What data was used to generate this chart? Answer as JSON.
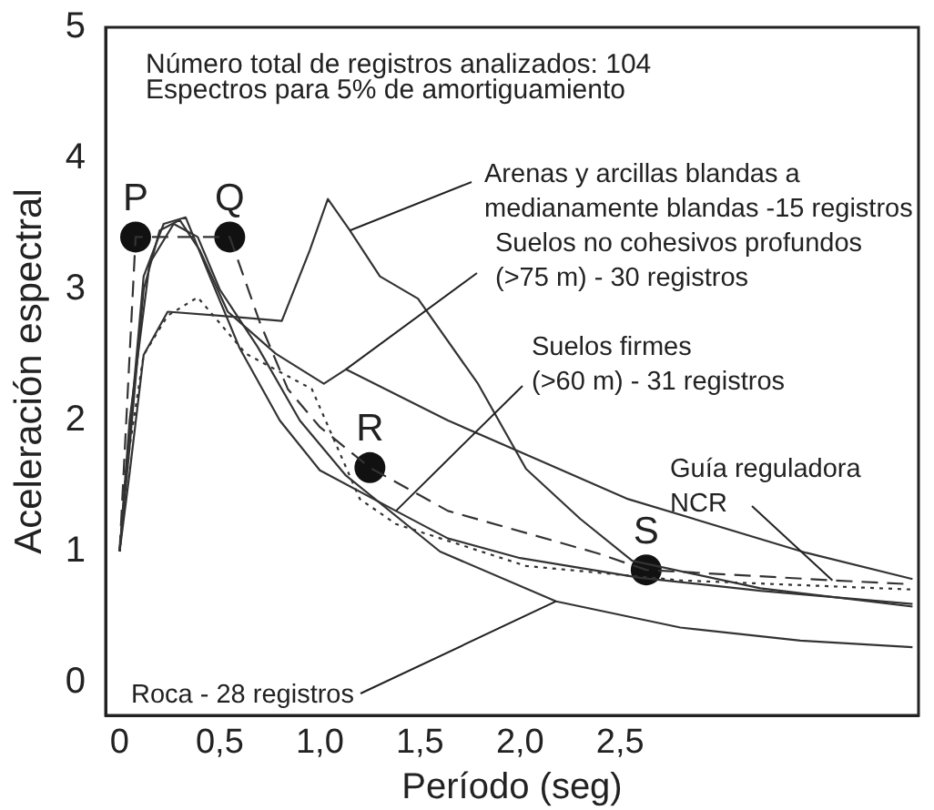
{
  "chart_data": {
    "type": "line",
    "xlabel": "Período (seg)",
    "ylabel": "Aceleración espectral",
    "xlim": [
      -0.07,
      3.99
    ],
    "ylim": [
      -0.25,
      5.0
    ],
    "xticks": [
      {
        "value": 0,
        "label": "0"
      },
      {
        "value": 0.5,
        "label": "0,5"
      },
      {
        "value": 1.0,
        "label": "1,0"
      },
      {
        "value": 1.5,
        "label": "1,5"
      },
      {
        "value": 2.0,
        "label": "2,0"
      },
      {
        "value": 2.5,
        "label": "2,5"
      }
    ],
    "yticks": [
      0,
      1,
      2,
      3,
      4,
      5
    ],
    "grid": false,
    "marker": "none",
    "annotations": [
      "Número total de registros analizados: 104",
      "Espectros para 5% de amortiguamiento",
      {
        "text": "P",
        "x": 0.08,
        "y": 3.4
      },
      {
        "text": "Q",
        "x": 0.55,
        "y": 3.4
      },
      {
        "text": "R",
        "x": 1.25,
        "y": 1.64
      },
      {
        "text": "S",
        "x": 2.63,
        "y": 0.86
      },
      {
        "text": "Arenas y arcillas blandas a medianamente blandas -15 registros",
        "x": 1.15,
        "y": 3.45
      },
      {
        "text": "Suelos no cohesivos profundos (>75 m) - 30 registros",
        "x": 1.13,
        "y": 2.39
      },
      {
        "text": "Suelos firmes (>60 m) - 31 registros",
        "x": 1.38,
        "y": 1.31
      },
      {
        "text": "Roca - 28 registros",
        "x": 2.18,
        "y": 0.62
      },
      {
        "text": "Guía reguladora NCR",
        "x": 3.56,
        "y": 0.78
      }
    ],
    "series": [
      {
        "color": "#333333",
        "line_style": "solid",
        "x": [
          0,
          0.05,
          0.12,
          0.24,
          0.5,
          0.81,
          0.95,
          1.04,
          1.15,
          1.3,
          1.49,
          1.79,
          2.03,
          2.3,
          2.56,
          3.2,
          3.96
        ],
        "values": [
          1.0,
          1.6,
          2.5,
          2.83,
          2.8,
          2.76,
          3.3,
          3.69,
          3.45,
          3.1,
          2.93,
          2.28,
          1.63,
          1.25,
          0.93,
          0.72,
          0.58
        ]
      },
      {
        "color": "#333333",
        "line_style": "solid",
        "x": [
          0,
          0.05,
          0.12,
          0.2,
          0.3,
          0.4,
          0.54,
          0.78,
          1.02,
          1.13,
          1.64,
          2.54,
          3.43,
          3.96
        ],
        "values": [
          1.0,
          1.8,
          3.0,
          3.45,
          3.53,
          3.3,
          2.83,
          2.51,
          2.28,
          2.39,
          2.0,
          1.4,
          0.99,
          0.79
        ]
      },
      {
        "color": "#333333",
        "line_style": "solid",
        "x": [
          0,
          0.05,
          0.12,
          0.22,
          0.33,
          0.45,
          0.6,
          0.8,
          1.0,
          1.38,
          1.64,
          2.0,
          2.6,
          3.2,
          3.96
        ],
        "values": [
          1.0,
          1.9,
          3.1,
          3.5,
          3.55,
          3.1,
          2.55,
          2.0,
          1.62,
          1.31,
          1.1,
          0.95,
          0.8,
          0.7,
          0.6
        ]
      },
      {
        "color": "#333333",
        "line_style": "solid",
        "x": [
          0,
          0.05,
          0.15,
          0.27,
          0.39,
          0.5,
          0.69,
          0.9,
          1.13,
          1.6,
          2.18,
          2.8,
          3.4,
          3.96
        ],
        "values": [
          1.0,
          2.0,
          3.2,
          3.5,
          3.4,
          3.0,
          2.56,
          2.0,
          1.58,
          1.0,
          0.62,
          0.42,
          0.32,
          0.27
        ]
      },
      {
        "color": "#333333",
        "line_style": "dashed",
        "x": [
          0,
          0.04,
          0.08,
          0.55,
          0.7,
          0.84,
          1.0,
          1.25,
          1.64,
          2.38,
          2.63,
          3.56,
          3.96
        ],
        "values": [
          1.0,
          2.2,
          3.4,
          3.4,
          2.75,
          2.24,
          1.95,
          1.64,
          1.31,
          0.99,
          0.86,
          0.78,
          0.75
        ]
      },
      {
        "color": "#333333",
        "line_style": "dotted",
        "x": [
          0,
          0.05,
          0.12,
          0.24,
          0.39,
          0.63,
          0.96,
          1.08,
          1.2,
          1.38,
          2.03,
          2.8,
          3.96
        ],
        "values": [
          1.0,
          1.8,
          2.5,
          2.8,
          2.94,
          2.51,
          2.24,
          1.82,
          1.4,
          1.21,
          0.89,
          0.78,
          0.71
        ]
      },
      {
        "type": "scatter",
        "marker": "circle",
        "color": "#111111",
        "x": [
          0.08,
          0.55,
          1.25,
          2.63
        ],
        "values": [
          3.4,
          3.4,
          1.64,
          0.86
        ]
      }
    ]
  }
}
